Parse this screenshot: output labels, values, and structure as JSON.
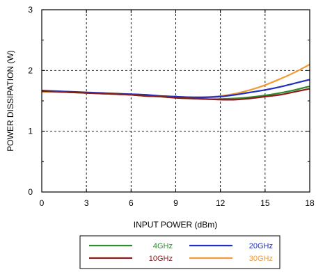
{
  "chart_data": {
    "type": "line",
    "title": "",
    "xlabel": "INPUT POWER (dBm)",
    "ylabel": "POWER DISSIPATION (W)",
    "xlim": [
      0,
      18
    ],
    "ylim": [
      0,
      3
    ],
    "xticks": [
      0,
      3,
      6,
      9,
      12,
      15,
      18
    ],
    "yticks": [
      0,
      1,
      2,
      3
    ],
    "grid": "dashed",
    "legend_position": "bottom",
    "x": [
      0,
      1,
      2,
      3,
      4,
      5,
      6,
      7,
      8,
      9,
      10,
      11,
      12,
      13,
      14,
      15,
      16,
      17,
      18
    ],
    "series": [
      {
        "name": "4GHz",
        "color": "#2e8b2e",
        "values": [
          1.66,
          1.65,
          1.64,
          1.63,
          1.62,
          1.61,
          1.6,
          1.58,
          1.57,
          1.55,
          1.54,
          1.53,
          1.53,
          1.54,
          1.56,
          1.59,
          1.63,
          1.68,
          1.74
        ]
      },
      {
        "name": "10GHz",
        "color": "#8b1a1a",
        "values": [
          1.66,
          1.65,
          1.64,
          1.63,
          1.62,
          1.61,
          1.6,
          1.58,
          1.57,
          1.55,
          1.54,
          1.53,
          1.52,
          1.52,
          1.54,
          1.57,
          1.6,
          1.65,
          1.7
        ]
      },
      {
        "name": "20GHz",
        "color": "#1f2fbf",
        "values": [
          1.67,
          1.66,
          1.65,
          1.64,
          1.63,
          1.62,
          1.61,
          1.6,
          1.58,
          1.57,
          1.56,
          1.56,
          1.57,
          1.6,
          1.64,
          1.68,
          1.73,
          1.79,
          1.85
        ]
      },
      {
        "name": "30GHz",
        "color": "#f39a33",
        "values": [
          1.65,
          1.65,
          1.64,
          1.63,
          1.62,
          1.61,
          1.6,
          1.59,
          1.58,
          1.57,
          1.56,
          1.56,
          1.58,
          1.62,
          1.68,
          1.76,
          1.86,
          1.97,
          2.1
        ]
      }
    ]
  }
}
